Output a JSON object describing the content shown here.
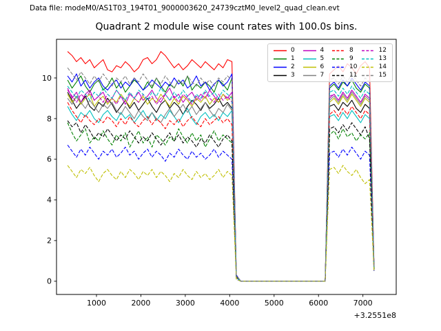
{
  "header": {
    "data_file_label": "Data file: modeM0/AS1T03_194T01_9000003620_24739cztM0_level2_quad_clean.evt"
  },
  "colors": {
    "background": "#ffffff",
    "axes": "#000000",
    "text": "#000000",
    "legend_edge": "#cccccc"
  },
  "chart_data": {
    "type": "line",
    "title": "Quadrant 2 module wise count rates with 100.0s bins.",
    "xlabel": "",
    "ylabel": "",
    "x_offset_label": "+3.2551e8",
    "x_ticks": [
      1000,
      2000,
      3000,
      4000,
      5000,
      6000,
      7000
    ],
    "y_ticks": [
      0,
      2,
      4,
      6,
      8,
      10
    ],
    "xlim": [
      100,
      7750
    ],
    "ylim": [
      -0.65,
      11.9
    ],
    "grid": false,
    "bin_seconds": 100.0,
    "x_start": 350,
    "x_step": 100,
    "n_points": 70,
    "legend": {
      "position": "upper right",
      "columns": 4,
      "order": "column-major",
      "labels": [
        "0",
        "1",
        "2",
        "3",
        "4",
        "5",
        "6",
        "7",
        "8",
        "9",
        "10",
        "11",
        "12",
        "13",
        "14",
        "15"
      ]
    },
    "event_structure": {
      "baseline1_x": [
        350,
        4050
      ],
      "drop_x": 4150,
      "zero_x": [
        4250,
        6150
      ],
      "recover_x": 6250,
      "baseline2_x": [
        6350,
        7150
      ],
      "final_low_x": 7250
    },
    "series": [
      {
        "name": "0",
        "color": "#ff0000",
        "linestyle": "solid",
        "values_pre": [
          11.3,
          11.1,
          10.8,
          11.0,
          10.7,
          10.9,
          10.5,
          10.7,
          10.9,
          10.4,
          10.3,
          10.6,
          10.5,
          10.8,
          10.6,
          10.3,
          10.5,
          10.9,
          11.0,
          10.7,
          10.9,
          11.3,
          11.1,
          10.8,
          10.5,
          10.7,
          10.4,
          10.6,
          10.9,
          10.7,
          10.5,
          10.8,
          10.6,
          10.4,
          10.7,
          10.5,
          10.9,
          10.8
        ],
        "value_drop": 0.3,
        "zero_bins": 20,
        "values_post": [
          10.2,
          10.4,
          10.6,
          10.3,
          10.7,
          10.5,
          10.2,
          10.6,
          10.8,
          10.5,
          0.8
        ]
      },
      {
        "name": "1",
        "color": "#008000",
        "linestyle": "solid",
        "values_pre": [
          9.9,
          9.5,
          9.8,
          10.1,
          9.6,
          9.3,
          9.7,
          9.9,
          9.4,
          9.6,
          10.0,
          9.5,
          9.8,
          9.3,
          9.6,
          9.9,
          9.7,
          9.4,
          9.8,
          9.5,
          10.0,
          9.6,
          9.3,
          9.7,
          9.5,
          9.9,
          9.6,
          10.1,
          9.4,
          9.7,
          9.5,
          9.8,
          9.6,
          9.3,
          9.9,
          9.7,
          9.4,
          10.0
        ],
        "value_drop": 0.2,
        "zero_bins": 20,
        "values_post": [
          9.5,
          9.7,
          9.4,
          9.8,
          9.6,
          9.9,
          9.5,
          9.3,
          9.7,
          9.5,
          0.7
        ]
      },
      {
        "name": "2",
        "color": "#0000ff",
        "linestyle": "solid",
        "values_pre": [
          10.1,
          9.8,
          10.2,
          9.6,
          9.9,
          9.5,
          9.8,
          10.0,
          9.6,
          9.4,
          9.7,
          9.9,
          9.5,
          9.8,
          9.6,
          10.0,
          9.7,
          9.4,
          9.6,
          9.9,
          9.7,
          9.5,
          9.8,
          9.6,
          10.0,
          9.7,
          9.9,
          9.5,
          9.7,
          10.1,
          9.6,
          9.8,
          9.4,
          9.7,
          9.9,
          9.6,
          9.8,
          10.2
        ],
        "value_drop": 0.3,
        "zero_bins": 20,
        "values_post": [
          9.6,
          9.8,
          9.5,
          9.9,
          9.6,
          10.0,
          9.7,
          9.4,
          9.8,
          9.6,
          0.7
        ]
      },
      {
        "name": "3",
        "color": "#000000",
        "linestyle": "solid",
        "values_pre": [
          9.3,
          8.9,
          8.5,
          8.8,
          9.1,
          8.6,
          8.4,
          8.8,
          8.6,
          9.0,
          8.7,
          8.3,
          8.6,
          8.9,
          8.5,
          8.8,
          8.4,
          8.7,
          9.0,
          8.6,
          8.3,
          8.7,
          8.9,
          8.5,
          8.8,
          8.6,
          8.2,
          8.6,
          8.9,
          8.7,
          8.4,
          8.8,
          8.5,
          8.7,
          9.0,
          8.6,
          8.8,
          8.5
        ],
        "value_drop": 0.2,
        "zero_bins": 20,
        "values_post": [
          8.6,
          8.7,
          8.4,
          8.8,
          8.6,
          8.9,
          8.5,
          8.3,
          8.7,
          8.5,
          0.6
        ]
      },
      {
        "name": "4",
        "color": "#bf00bf",
        "linestyle": "solid",
        "values_pre": [
          9.5,
          9.0,
          9.3,
          8.8,
          9.2,
          9.4,
          8.9,
          9.1,
          9.3,
          8.8,
          9.0,
          9.4,
          9.1,
          8.7,
          9.2,
          9.0,
          9.3,
          8.9,
          9.1,
          9.4,
          9.0,
          8.8,
          9.2,
          9.5,
          9.0,
          9.2,
          8.8,
          9.1,
          9.3,
          8.9,
          9.2,
          9.0,
          9.4,
          9.1,
          8.8,
          9.2,
          9.0,
          9.3
        ],
        "value_drop": 0.2,
        "zero_bins": 20,
        "values_post": [
          9.0,
          9.2,
          8.9,
          9.3,
          9.0,
          9.4,
          9.1,
          8.8,
          9.2,
          9.0,
          0.7
        ]
      },
      {
        "name": "5",
        "color": "#00bfbf",
        "linestyle": "solid",
        "values_pre": [
          8.6,
          8.2,
          7.9,
          8.3,
          8.1,
          8.4,
          8.0,
          7.8,
          8.2,
          8.4,
          8.1,
          7.9,
          8.3,
          8.0,
          8.2,
          7.8,
          8.1,
          8.4,
          8.0,
          8.3,
          7.9,
          8.2,
          8.0,
          8.4,
          8.1,
          7.8,
          8.2,
          8.5,
          8.0,
          7.7,
          8.1,
          8.3,
          8.0,
          8.2,
          7.9,
          8.3,
          8.1,
          8.4
        ],
        "value_drop": 0.2,
        "zero_bins": 20,
        "values_post": [
          8.1,
          8.2,
          7.9,
          8.3,
          8.0,
          8.4,
          8.1,
          7.8,
          8.2,
          8.0,
          0.6
        ]
      },
      {
        "name": "6",
        "color": "#bfbf00",
        "linestyle": "solid",
        "values_pre": [
          9.2,
          8.8,
          9.1,
          8.7,
          9.0,
          9.2,
          8.6,
          8.9,
          9.1,
          8.7,
          9.0,
          8.8,
          9.2,
          8.9,
          8.6,
          9.0,
          8.8,
          9.1,
          8.7,
          9.0,
          8.8,
          9.2,
          8.9,
          8.6,
          9.0,
          8.7,
          9.1,
          8.9,
          8.6,
          9.0,
          8.8,
          9.1,
          8.7,
          9.0,
          8.8,
          9.2,
          8.9,
          9.1
        ],
        "value_drop": 0.2,
        "zero_bins": 20,
        "values_post": [
          8.8,
          9.0,
          8.7,
          9.1,
          8.8,
          9.2,
          8.9,
          8.6,
          9.0,
          8.8,
          0.7
        ]
      },
      {
        "name": "7",
        "color": "#808080",
        "linestyle": "solid",
        "values_pre": [
          9.0,
          8.7,
          9.1,
          8.8,
          8.5,
          8.9,
          8.6,
          8.3,
          8.7,
          8.5,
          8.8,
          8.4,
          8.2,
          8.6,
          8.3,
          8.0,
          8.4,
          8.1,
          7.9,
          8.3,
          8.0,
          7.8,
          8.2,
          8.5,
          8.1,
          8.4,
          8.7,
          8.3,
          8.6,
          8.2,
          8.5,
          8.8,
          8.4,
          8.1,
          8.5,
          8.3,
          8.7,
          8.4
        ],
        "value_drop": 0.2,
        "zero_bins": 20,
        "values_post": [
          8.9,
          9.1,
          8.8,
          9.2,
          8.9,
          9.3,
          9.0,
          8.7,
          9.1,
          8.9,
          0.7
        ]
      },
      {
        "name": "8",
        "color": "#ff0000",
        "linestyle": "dashed",
        "values_pre": [
          8.8,
          8.4,
          8.1,
          7.8,
          8.2,
          7.9,
          7.7,
          8.0,
          7.8,
          8.1,
          7.9,
          7.6,
          8.0,
          7.7,
          8.1,
          7.8,
          7.6,
          7.9,
          8.1,
          7.7,
          8.0,
          7.8,
          7.5,
          7.9,
          7.7,
          8.0,
          7.6,
          7.9,
          8.1,
          7.8,
          7.6,
          8.0,
          7.7,
          7.9,
          8.1,
          7.8,
          8.0,
          7.7
        ],
        "value_drop": 0.2,
        "zero_bins": 20,
        "values_post": [
          8.2,
          8.4,
          8.1,
          8.5,
          8.2,
          8.6,
          8.3,
          8.0,
          8.4,
          8.2,
          0.6
        ]
      },
      {
        "name": "9",
        "color": "#008000",
        "linestyle": "dashed",
        "values_pre": [
          7.8,
          7.3,
          6.9,
          7.2,
          7.5,
          6.8,
          7.1,
          6.9,
          7.4,
          7.0,
          6.7,
          7.2,
          6.9,
          7.3,
          6.6,
          7.0,
          7.4,
          6.8,
          7.1,
          6.6,
          7.2,
          7.0,
          6.7,
          7.1,
          6.9,
          7.5,
          7.1,
          6.8,
          7.3,
          6.9,
          7.2,
          6.6,
          7.0,
          7.4,
          6.9,
          7.2,
          7.0,
          6.8
        ],
        "value_drop": 0.2,
        "zero_bins": 20,
        "values_post": [
          7.2,
          7.4,
          7.0,
          7.5,
          7.1,
          7.3,
          6.9,
          7.2,
          7.0,
          7.3,
          0.6
        ]
      },
      {
        "name": "10",
        "color": "#0000ff",
        "linestyle": "dashed",
        "values_pre": [
          6.7,
          6.4,
          6.1,
          6.5,
          6.2,
          6.6,
          6.3,
          6.0,
          6.4,
          6.2,
          6.5,
          6.1,
          6.3,
          6.6,
          6.2,
          6.4,
          6.0,
          6.3,
          6.5,
          6.1,
          6.4,
          6.2,
          5.9,
          6.3,
          6.1,
          6.5,
          6.2,
          6.0,
          6.4,
          6.1,
          6.3,
          6.0,
          6.2,
          6.5,
          6.1,
          6.4,
          6.2,
          6.0
        ],
        "value_drop": 0.1,
        "zero_bins": 20,
        "values_post": [
          6.3,
          6.4,
          6.1,
          6.5,
          6.2,
          6.6,
          6.3,
          6.0,
          6.4,
          6.2,
          0.5
        ]
      },
      {
        "name": "11",
        "color": "#000000",
        "linestyle": "dashed",
        "values_pre": [
          7.9,
          7.6,
          7.8,
          7.3,
          7.7,
          7.4,
          7.0,
          7.3,
          7.1,
          7.5,
          7.2,
          6.9,
          7.2,
          7.0,
          7.4,
          7.1,
          6.8,
          7.1,
          6.9,
          7.3,
          7.0,
          6.7,
          7.0,
          7.3,
          6.9,
          7.2,
          6.8,
          7.1,
          6.9,
          6.6,
          7.0,
          6.8,
          7.2,
          6.9,
          6.6,
          7.0,
          7.2,
          6.9
        ],
        "value_drop": 0.2,
        "zero_bins": 20,
        "values_post": [
          7.5,
          7.6,
          7.3,
          7.7,
          7.4,
          7.8,
          7.5,
          7.2,
          7.6,
          7.0,
          0.6
        ]
      },
      {
        "name": "12",
        "color": "#bf00bf",
        "linestyle": "dashed",
        "values_pre": [
          9.4,
          9.1,
          8.8,
          9.2,
          9.0,
          9.3,
          8.9,
          9.1,
          8.8,
          9.2,
          9.0,
          8.7,
          9.1,
          8.9,
          9.3,
          9.0,
          8.8,
          9.2,
          8.9,
          9.1,
          8.7,
          9.0,
          9.2,
          8.9,
          9.1,
          8.8,
          9.2,
          9.0,
          8.7,
          9.1,
          8.9,
          9.3,
          9.0,
          8.8,
          9.2,
          8.9,
          9.1,
          8.8
        ],
        "value_drop": 0.2,
        "zero_bins": 20,
        "values_post": [
          9.1,
          9.2,
          8.9,
          9.3,
          9.0,
          9.4,
          9.1,
          8.8,
          9.2,
          9.0,
          0.7
        ]
      },
      {
        "name": "13",
        "color": "#00bfbf",
        "linestyle": "dashed",
        "values_pre": [
          9.6,
          9.3,
          9.0,
          9.4,
          9.2,
          8.9,
          9.3,
          9.1,
          9.5,
          9.2,
          9.0,
          9.4,
          9.1,
          8.9,
          9.3,
          9.0,
          9.4,
          9.2,
          8.9,
          9.3,
          9.1,
          9.5,
          9.2,
          8.9,
          9.3,
          9.0,
          9.4,
          9.1,
          8.8,
          9.2,
          9.0,
          9.4,
          9.1,
          9.3,
          9.0,
          9.4,
          9.2,
          9.0
        ],
        "value_drop": 0.2,
        "zero_bins": 20,
        "values_post": [
          9.3,
          9.4,
          9.1,
          9.5,
          9.2,
          9.6,
          9.3,
          9.0,
          9.4,
          9.2,
          0.7
        ]
      },
      {
        "name": "14",
        "color": "#bfbf00",
        "linestyle": "dashed",
        "values_pre": [
          5.7,
          5.4,
          5.1,
          5.5,
          5.3,
          5.6,
          5.2,
          4.9,
          5.3,
          5.5,
          5.2,
          5.0,
          5.4,
          5.1,
          5.5,
          5.3,
          5.0,
          5.4,
          5.2,
          5.5,
          5.1,
          5.4,
          5.2,
          4.9,
          5.3,
          5.1,
          5.5,
          5.2,
          5.0,
          5.4,
          5.1,
          5.3,
          5.0,
          5.2,
          5.5,
          5.1,
          5.4,
          5.2
        ],
        "value_drop": 0.1,
        "zero_bins": 20,
        "values_post": [
          5.5,
          5.6,
          5.3,
          5.7,
          5.4,
          5.2,
          5.5,
          5.1,
          4.8,
          5.0,
          0.5
        ]
      },
      {
        "name": "15",
        "color": "#808080",
        "linestyle": "dashed",
        "values_pre": [
          10.5,
          10.2,
          9.9,
          10.3,
          10.0,
          9.7,
          10.1,
          9.8,
          10.2,
          9.9,
          9.6,
          10.0,
          9.8,
          10.1,
          9.7,
          10.0,
          9.8,
          10.2,
          9.9,
          9.6,
          10.0,
          9.7,
          10.1,
          9.8,
          9.5,
          9.9,
          9.7,
          10.1,
          9.8,
          9.6,
          10.0,
          9.7,
          9.9,
          9.6,
          10.0,
          9.8,
          10.1,
          9.9
        ],
        "value_drop": 0.3,
        "zero_bins": 20,
        "values_post": [
          9.9,
          10.0,
          9.7,
          10.1,
          9.8,
          10.2,
          9.9,
          9.6,
          10.0,
          9.8,
          0.7
        ]
      }
    ]
  }
}
